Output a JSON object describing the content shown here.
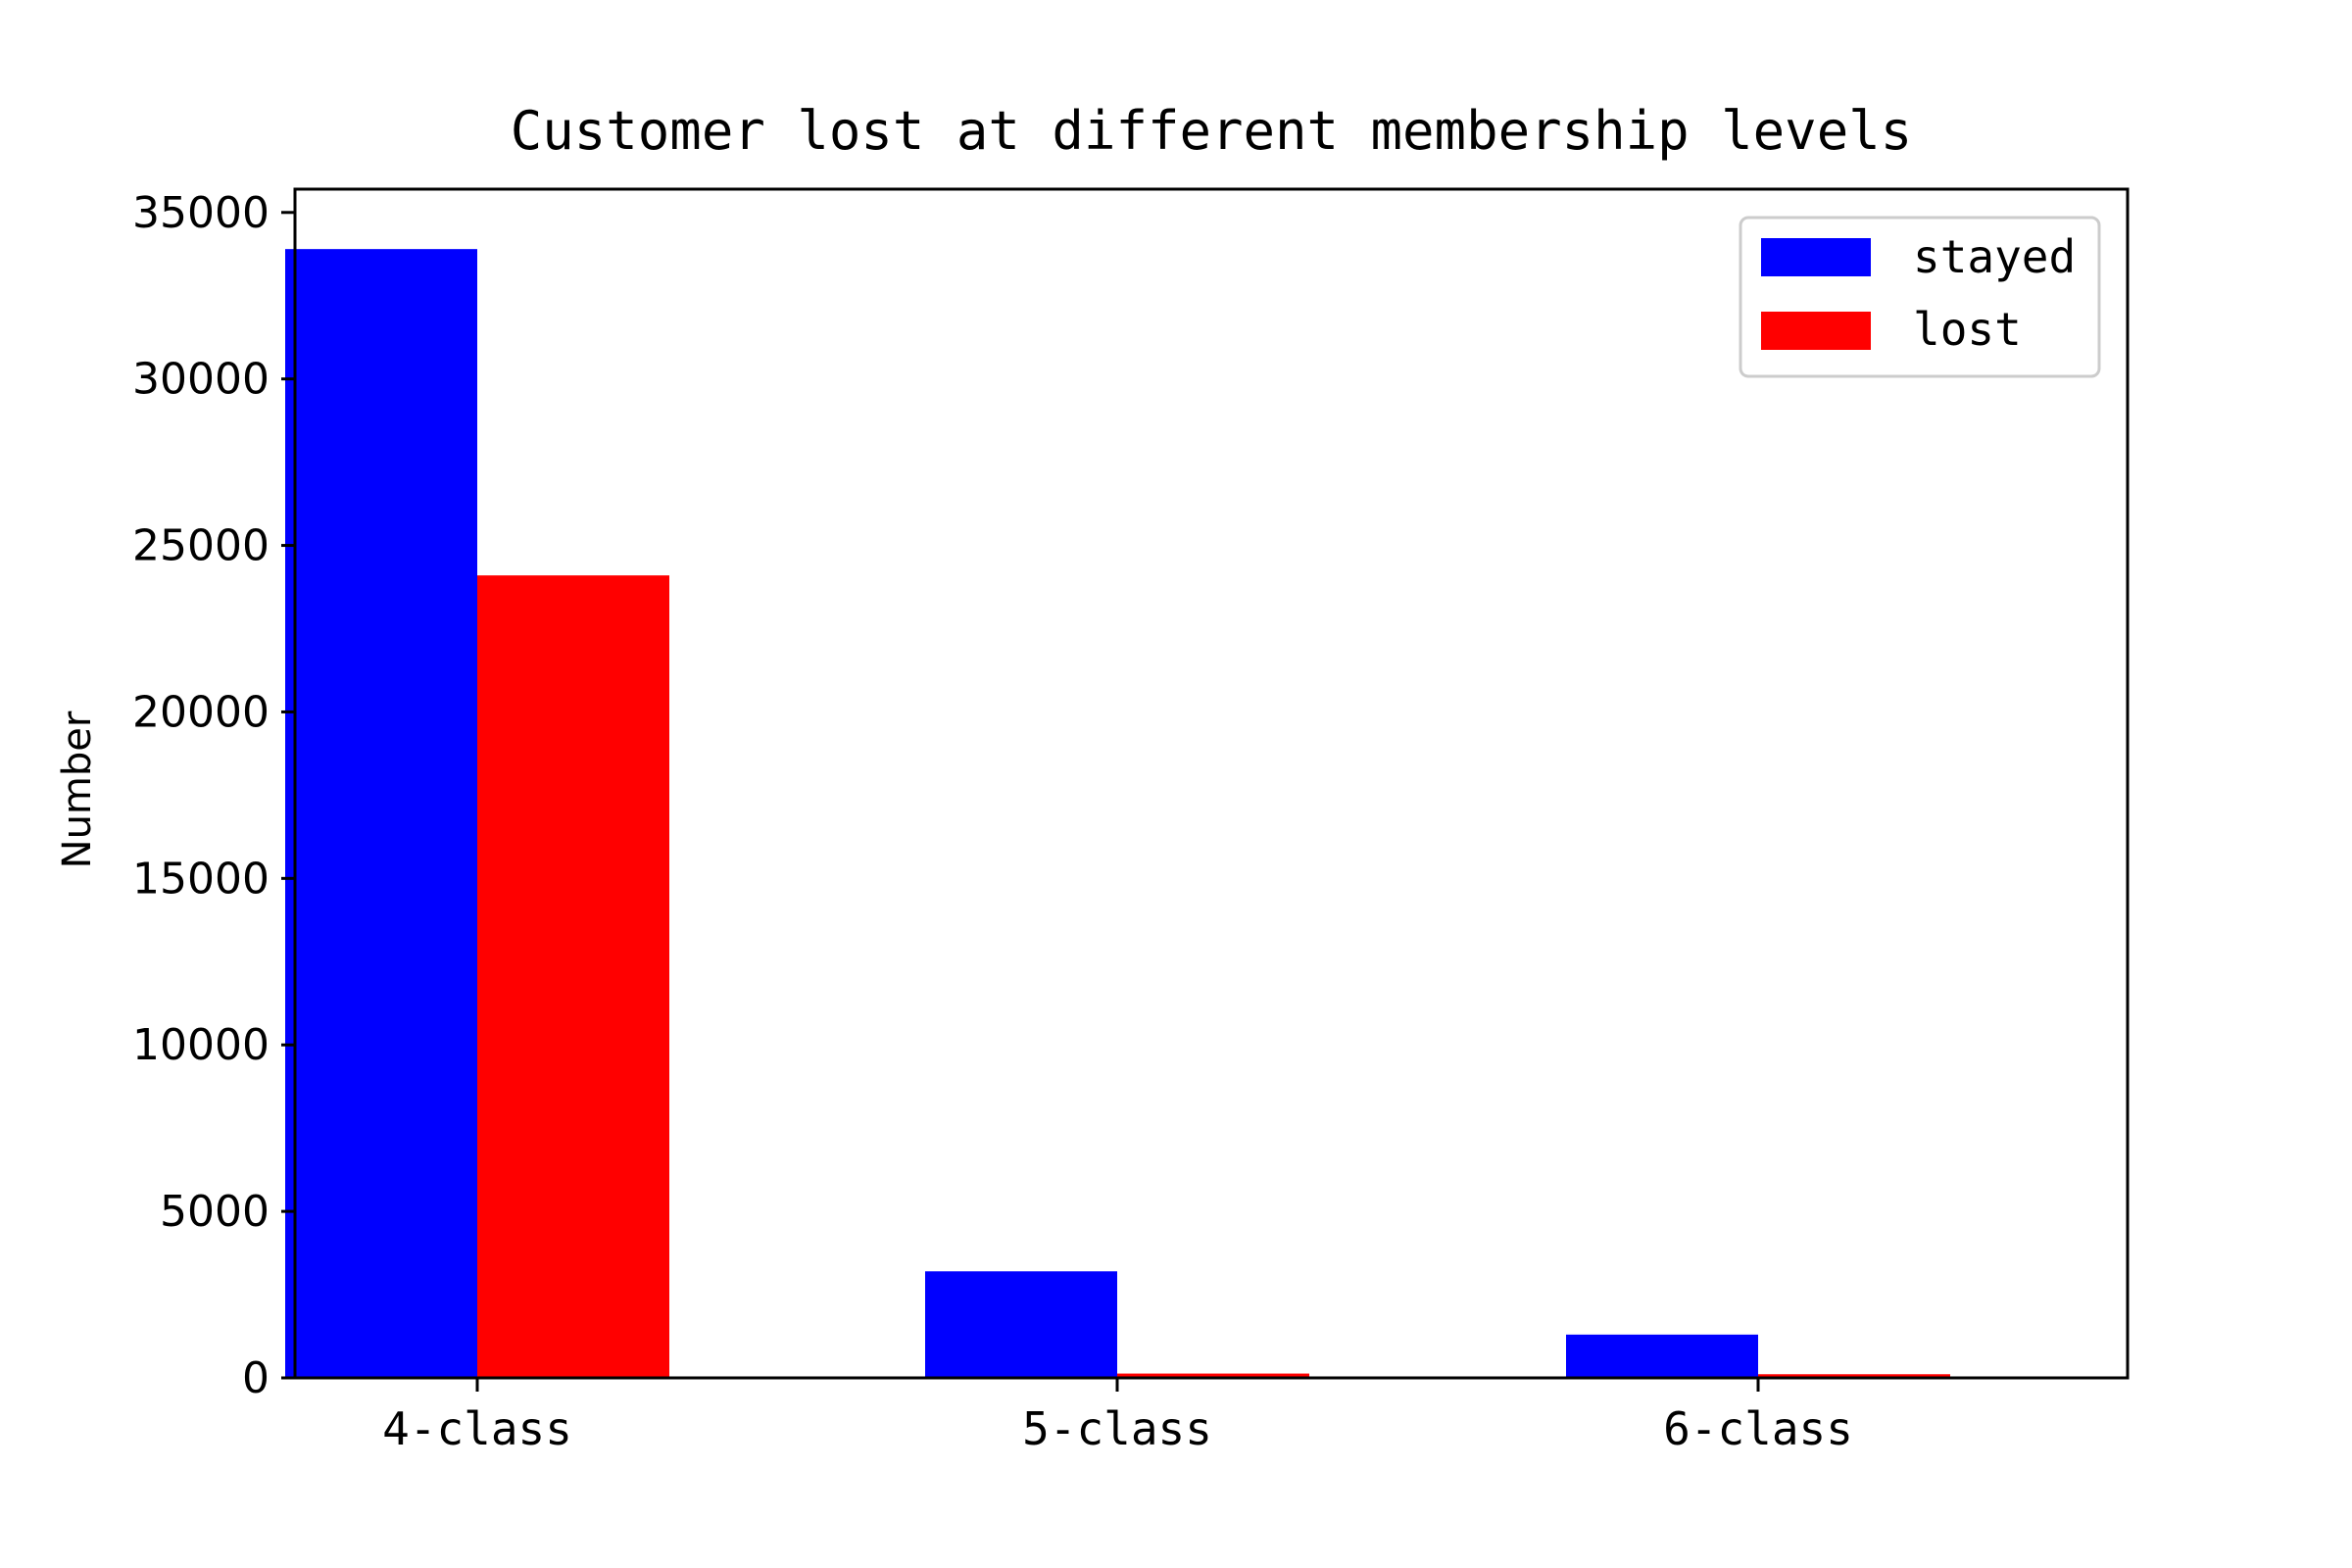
{
  "chart_data": {
    "type": "bar",
    "title": "Customer lost at different membership levels",
    "xlabel": "",
    "ylabel": "Number",
    "categories": [
      "4-class",
      "5-class",
      "6-class"
    ],
    "series": [
      {
        "name": "stayed",
        "color": "#0000ff",
        "values": [
          33900,
          3200,
          1300
        ]
      },
      {
        "name": "lost",
        "color": "#ff0000",
        "values": [
          24100,
          130,
          110
        ]
      }
    ],
    "ylim": [
      0,
      35700
    ],
    "yticks": [
      0,
      5000,
      10000,
      15000,
      20000,
      25000,
      30000,
      35000
    ],
    "ytick_labels": [
      "0",
      "5000",
      "10000",
      "15000",
      "20000",
      "25000",
      "30000",
      "35000"
    ],
    "grid": false,
    "legend_position": "top-right"
  }
}
